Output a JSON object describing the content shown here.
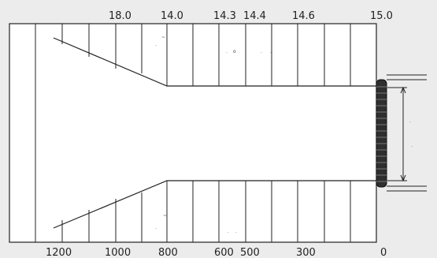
{
  "top_labels": [
    "18.0",
    "14.0",
    "14.3",
    "14.4",
    "14.6",
    "15.0"
  ],
  "bottom_labels": [
    "1200",
    "1000",
    "800",
    "600",
    "500",
    "300",
    "0"
  ],
  "colors": {
    "background": "#ececec",
    "panel": "#ffffff",
    "line": "#222222",
    "coupling": "#2f2f2f"
  }
}
